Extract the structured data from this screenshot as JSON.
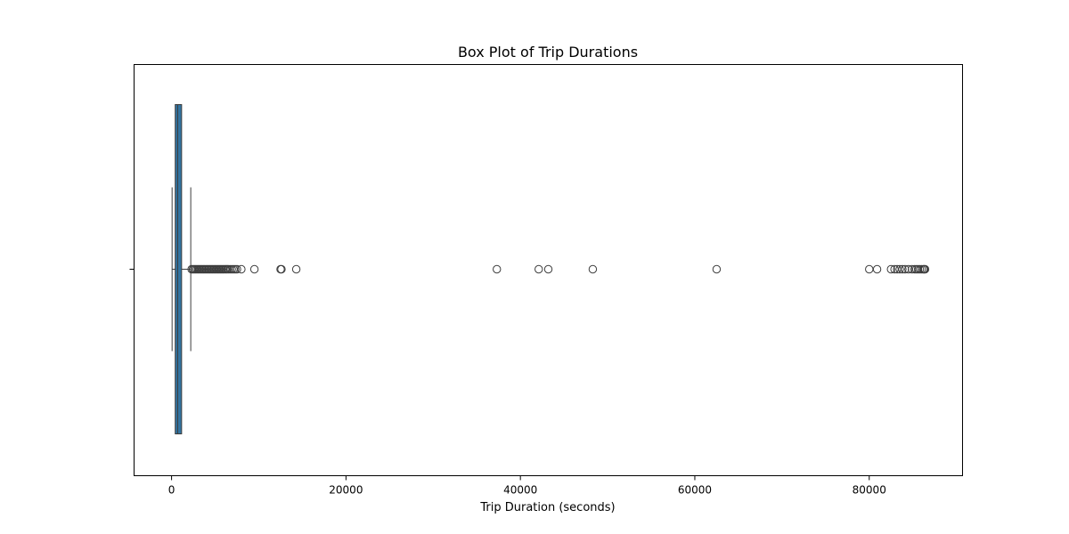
{
  "chart_data": {
    "type": "box",
    "title": "Box Plot of Trip Durations",
    "xlabel": "Trip Duration (seconds)",
    "ylabel": "",
    "xlim": [
      -4300,
      90700
    ],
    "x_ticks": [
      0,
      20000,
      40000,
      60000,
      80000
    ],
    "x_tick_labels": [
      "0",
      "20000",
      "40000",
      "60000",
      "80000"
    ],
    "orientation": "horizontal",
    "grid": false,
    "box": {
      "whisker_low": 60,
      "q1": 420,
      "median": 700,
      "q3": 1150,
      "whisker_high": 2200
    },
    "outliers": [
      2300,
      2450,
      2600,
      2750,
      2900,
      3050,
      3200,
      3350,
      3500,
      3650,
      3800,
      3950,
      4100,
      4250,
      4400,
      4550,
      4700,
      4850,
      5000,
      5150,
      5300,
      5450,
      5600,
      5750,
      5900,
      6050,
      6200,
      6350,
      6500,
      6700,
      6900,
      7100,
      7300,
      7500,
      8000,
      9500,
      12500,
      12600,
      14300,
      37300,
      42100,
      43200,
      48300,
      62500,
      80000,
      80900,
      82500,
      82900,
      83200,
      83500,
      83800,
      84100,
      84500,
      84900,
      85200,
      85400,
      85600,
      85800,
      86000,
      86200,
      86300,
      86400
    ],
    "colors": {
      "box_fill": "#3274a1",
      "line": "#3d3d3d",
      "outlier_edge": "#3d3d3d"
    }
  }
}
